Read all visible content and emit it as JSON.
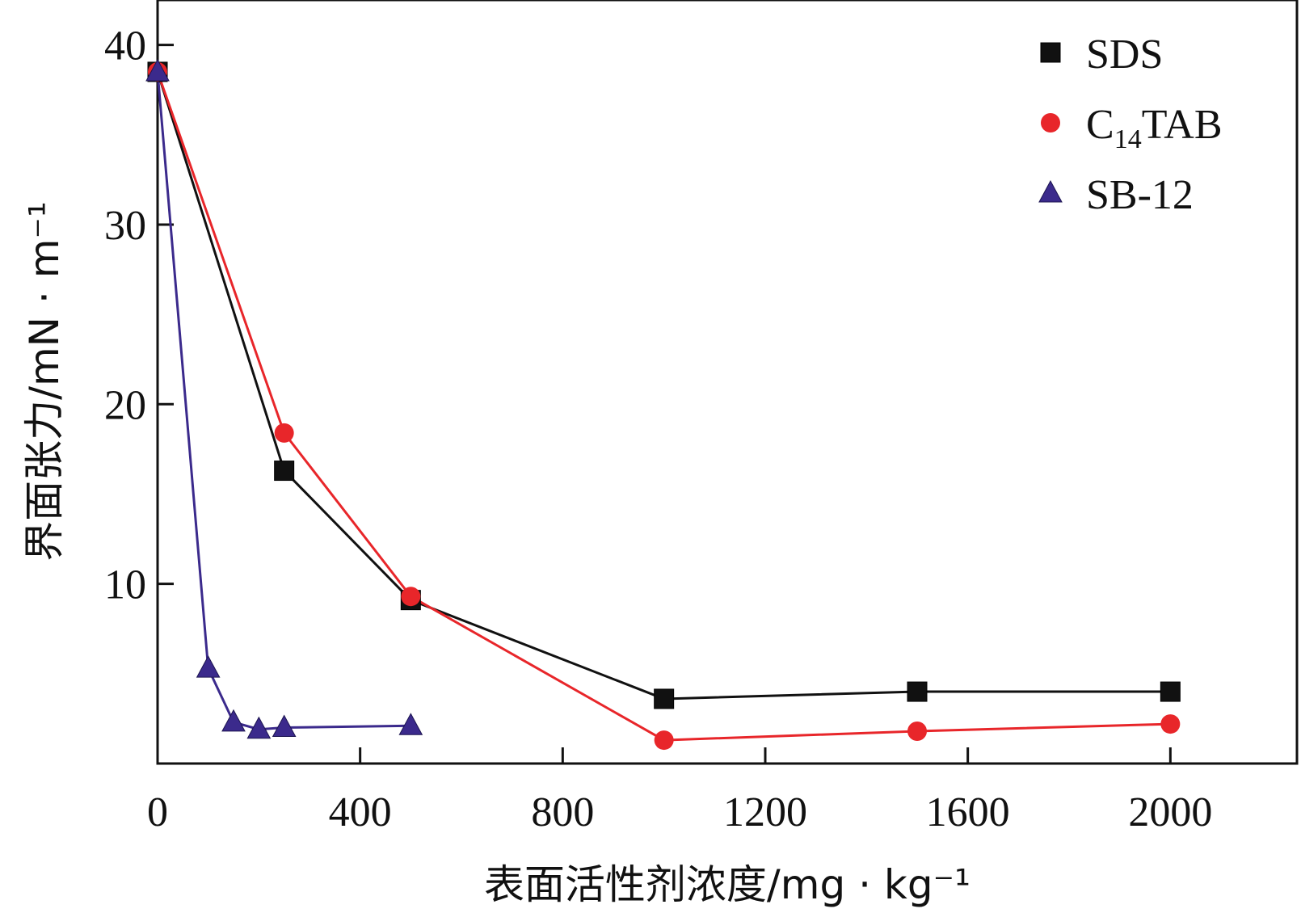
{
  "chart_data": {
    "type": "line",
    "title": "",
    "xlabel": "表面活性剂浓度/mg · kg⁻¹",
    "ylabel": "界面张力/mN · m⁻¹",
    "xlim": [
      0,
      2250
    ],
    "ylim": [
      0,
      42.5
    ],
    "xticks": [
      0,
      400,
      800,
      1200,
      1600,
      2000
    ],
    "yticks": [
      10,
      20,
      30,
      40
    ],
    "grid": false,
    "legend_position": "top-right",
    "series": [
      {
        "name": "SDS",
        "color": "#111111",
        "marker": "square",
        "x": [
          0,
          250,
          500,
          1000,
          1500,
          2000
        ],
        "y": [
          38.5,
          16.3,
          9.1,
          3.6,
          4.0,
          4.0
        ]
      },
      {
        "name": "C14TAB",
        "name_main": "C",
        "name_sub": "14",
        "name_rest": "TAB",
        "color": "#e8262a",
        "marker": "circle",
        "x": [
          0,
          250,
          500,
          1000,
          1500,
          2000
        ],
        "y": [
          38.5,
          18.4,
          9.3,
          1.3,
          1.8,
          2.2
        ]
      },
      {
        "name": "SB-12",
        "color": "#3b2a8c",
        "marker": "triangle",
        "x": [
          0,
          100,
          150,
          200,
          250,
          500
        ],
        "y": [
          38.5,
          5.3,
          2.3,
          1.9,
          2.0,
          2.1
        ]
      }
    ]
  }
}
